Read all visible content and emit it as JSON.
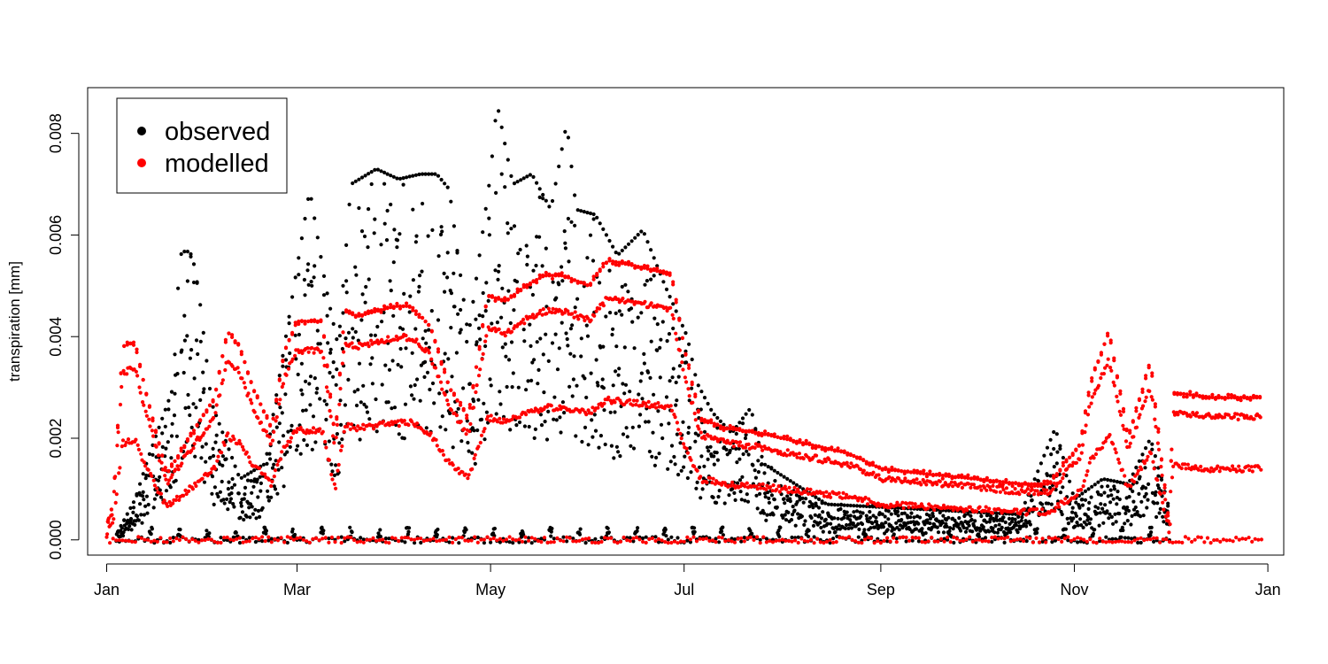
{
  "chart_data": {
    "type": "scatter",
    "title": "",
    "xlabel": "",
    "ylabel": "transpiration [mm]",
    "x_ticks": [
      "Jan",
      "Mar",
      "May",
      "Jul",
      "Sep",
      "Nov",
      "Jan"
    ],
    "x_tick_dates": [
      "2000-01-01",
      "2000-03-01",
      "2000-05-01",
      "2000-07-01",
      "2000-09-01",
      "2000-11-01",
      "2001-01-01"
    ],
    "y_ticks": [
      "0.000",
      "0.002",
      "0.004",
      "0.006",
      "0.008"
    ],
    "y_tick_values": [
      0.0,
      0.002,
      0.004,
      0.006,
      0.008
    ],
    "ylim": [
      -0.0003,
      0.0089
    ],
    "xlim": [
      "1999-12-26",
      "2001-01-06"
    ],
    "grid": false,
    "legend": {
      "position": "top-left",
      "entries": [
        "observed",
        "modelled"
      ]
    },
    "series": [
      {
        "name": "observed",
        "color": "#000000",
        "marker": "dot",
        "daily_max_envelope": [
          [
            "2000-01-04",
            0.0001
          ],
          [
            "2000-01-10",
            0.0008
          ],
          [
            "2000-01-14",
            0.0016
          ],
          [
            "2000-01-18",
            0.0023
          ],
          [
            "2000-01-22",
            0.003
          ],
          [
            "2000-01-24",
            0.0056
          ],
          [
            "2000-01-26",
            0.0057
          ],
          [
            "2000-01-28",
            0.0056
          ],
          [
            "2000-01-30",
            0.0049
          ],
          [
            "2000-02-03",
            0.0027
          ],
          [
            "2000-02-12",
            0.0012
          ],
          [
            "2000-02-20",
            0.0015
          ],
          [
            "2000-03-05",
            0.0069
          ],
          [
            "2000-03-10",
            0.005
          ],
          [
            "2000-03-14",
            0.0038
          ],
          [
            "2000-03-18",
            0.007
          ],
          [
            "2000-03-26",
            0.0073
          ],
          [
            "2000-04-02",
            0.0071
          ],
          [
            "2000-04-09",
            0.0072
          ],
          [
            "2000-04-14",
            0.0072
          ],
          [
            "2000-04-18",
            0.0069
          ],
          [
            "2000-04-24",
            0.004
          ],
          [
            "2000-05-01",
            0.0072
          ],
          [
            "2000-05-03",
            0.0086
          ],
          [
            "2000-05-08",
            0.007
          ],
          [
            "2000-05-14",
            0.0072
          ],
          [
            "2000-05-20",
            0.0065
          ],
          [
            "2000-05-25",
            0.0082
          ],
          [
            "2000-05-28",
            0.0065
          ],
          [
            "2000-06-03",
            0.0064
          ],
          [
            "2000-06-10",
            0.0056
          ],
          [
            "2000-06-18",
            0.0061
          ],
          [
            "2000-06-25",
            0.005
          ],
          [
            "2000-07-02",
            0.004
          ],
          [
            "2000-07-05",
            0.0031
          ],
          [
            "2000-07-10",
            0.0025
          ],
          [
            "2000-07-16",
            0.0021
          ],
          [
            "2000-07-22",
            0.0026
          ],
          [
            "2000-07-26",
            0.0015
          ],
          [
            "2000-08-15",
            0.0007
          ],
          [
            "2000-09-15",
            0.0006
          ],
          [
            "2000-10-15",
            0.0005
          ],
          [
            "2000-10-26",
            0.0022
          ],
          [
            "2000-11-01",
            0.0008
          ],
          [
            "2000-11-10",
            0.0012
          ],
          [
            "2000-11-18",
            0.0011
          ],
          [
            "2000-11-25",
            0.002
          ],
          [
            "2000-12-01",
            0.0006
          ]
        ]
      },
      {
        "name": "modelled",
        "color": "#ff0000",
        "marker": "dot",
        "daily_max_envelope": [
          [
            "2000-01-01",
            0.0003
          ],
          [
            "2000-01-03",
            0.0007
          ],
          [
            "2000-01-06",
            0.0038
          ],
          [
            "2000-01-10",
            0.0039
          ],
          [
            "2000-01-13",
            0.003
          ],
          [
            "2000-01-20",
            0.0013
          ],
          [
            "2000-02-04",
            0.0028
          ],
          [
            "2000-02-08",
            0.0041
          ],
          [
            "2000-02-12",
            0.0038
          ],
          [
            "2000-02-16",
            0.003
          ],
          [
            "2000-02-22",
            0.0022
          ],
          [
            "2000-02-26",
            0.0037
          ],
          [
            "2000-03-01",
            0.0043
          ],
          [
            "2000-03-05",
            0.0043
          ],
          [
            "2000-03-09",
            0.0043
          ],
          [
            "2000-03-13",
            0.002
          ],
          [
            "2000-03-16",
            0.0045
          ],
          [
            "2000-03-20",
            0.0044
          ],
          [
            "2000-03-26",
            0.0045
          ],
          [
            "2000-04-01",
            0.0046
          ],
          [
            "2000-04-06",
            0.0046
          ],
          [
            "2000-04-12",
            0.0042
          ],
          [
            "2000-04-18",
            0.003
          ],
          [
            "2000-04-24",
            0.0024
          ],
          [
            "2000-04-30",
            0.0048
          ],
          [
            "2000-05-06",
            0.0047
          ],
          [
            "2000-05-12",
            0.005
          ],
          [
            "2000-05-18",
            0.0052
          ],
          [
            "2000-05-24",
            0.0052
          ],
          [
            "2000-06-01",
            0.005
          ],
          [
            "2000-06-07",
            0.0055
          ],
          [
            "2000-06-15",
            0.0054
          ],
          [
            "2000-06-22",
            0.0053
          ],
          [
            "2000-06-27",
            0.0052
          ],
          [
            "2000-07-01",
            0.0038
          ],
          [
            "2000-07-06",
            0.0024
          ],
          [
            "2000-07-14",
            0.0022
          ],
          [
            "2000-07-25",
            0.0021
          ],
          [
            "2000-08-08",
            0.0019
          ],
          [
            "2000-08-22",
            0.0017
          ],
          [
            "2000-09-01",
            0.0014
          ],
          [
            "2000-09-15",
            0.0013
          ],
          [
            "2000-10-01",
            0.0012
          ],
          [
            "2000-10-15",
            0.0011
          ],
          [
            "2000-10-24",
            0.0011
          ],
          [
            "2000-11-03",
            0.0019
          ],
          [
            "2000-11-06",
            0.0031
          ],
          [
            "2000-11-12",
            0.0041
          ],
          [
            "2000-11-18",
            0.002
          ],
          [
            "2000-11-25",
            0.0035
          ],
          [
            "2000-12-01",
            0.0002
          ],
          [
            "2000-12-02",
            0.0029
          ],
          [
            "2000-12-15",
            0.0028
          ],
          [
            "2000-12-30",
            0.0028
          ]
        ]
      }
    ]
  }
}
